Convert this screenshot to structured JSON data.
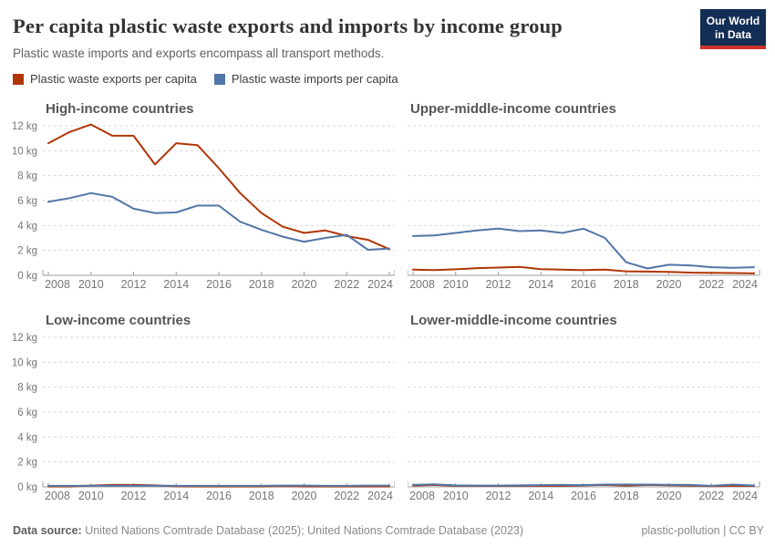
{
  "header": {
    "title": "Per capita plastic waste exports and imports by income group",
    "subtitle": "Plastic waste imports and exports encompass all transport methods.",
    "logo": [
      "Our World",
      "in Data"
    ]
  },
  "legend": [
    {
      "key": "exports",
      "label": "Plastic waste exports per capita",
      "color": "#B13507"
    },
    {
      "key": "imports",
      "label": "Plastic waste imports per capita",
      "color": "#5276A7"
    }
  ],
  "chart_data": {
    "type": "line",
    "years": [
      2008,
      2009,
      2010,
      2011,
      2012,
      2013,
      2014,
      2015,
      2016,
      2017,
      2018,
      2019,
      2020,
      2021,
      2022,
      2023,
      2024
    ],
    "x_tick_years": [
      2008,
      2010,
      2012,
      2014,
      2016,
      2018,
      2020,
      2022,
      2024
    ],
    "y_ticks": [
      0,
      2,
      4,
      6,
      8,
      10,
      12
    ],
    "y_unit": "kg",
    "ylim": [
      0,
      12
    ],
    "grid": "dashed-horizontal",
    "panels": [
      {
        "id": "high-income",
        "title": "High-income countries",
        "y_axis_labels": true,
        "series": [
          {
            "key": "exports",
            "name": "Plastic waste exports per capita",
            "values": [
              10.6,
              11.5,
              12.1,
              11.2,
              11.2,
              8.9,
              10.6,
              10.45,
              8.6,
              6.6,
              5.0,
              3.9,
              3.4,
              3.6,
              3.15,
              2.85,
              2.1
            ]
          },
          {
            "key": "imports",
            "name": "Plastic waste imports per capita",
            "values": [
              5.9,
              6.2,
              6.6,
              6.3,
              5.35,
              5.0,
              5.05,
              5.6,
              5.6,
              4.3,
              3.65,
              3.1,
              2.7,
              3.0,
              3.25,
              2.05,
              2.15
            ]
          }
        ]
      },
      {
        "id": "upper-middle-income",
        "title": "Upper-middle-income countries",
        "y_axis_labels": false,
        "series": [
          {
            "key": "exports",
            "name": "Plastic waste exports per capita",
            "values": [
              0.45,
              0.42,
              0.48,
              0.58,
              0.62,
              0.68,
              0.5,
              0.45,
              0.42,
              0.45,
              0.32,
              0.3,
              0.27,
              0.22,
              0.2,
              0.18,
              0.15
            ]
          },
          {
            "key": "imports",
            "name": "Plastic waste imports per capita",
            "values": [
              3.15,
              3.2,
              3.4,
              3.6,
              3.75,
              3.55,
              3.6,
              3.4,
              3.75,
              3.0,
              1.05,
              0.55,
              0.85,
              0.8,
              0.65,
              0.6,
              0.65
            ]
          }
        ]
      },
      {
        "id": "low-income",
        "title": "Low-income countries",
        "y_axis_labels": true,
        "series": [
          {
            "key": "exports",
            "name": "Plastic waste exports per capita",
            "values": [
              0.03,
              0.03,
              0.1,
              0.15,
              0.15,
              0.12,
              0.04,
              0.03,
              0.03,
              0.03,
              0.03,
              0.06,
              0.03,
              0.03,
              0.03,
              0.03,
              0.03
            ]
          },
          {
            "key": "imports",
            "name": "Plastic waste imports per capita",
            "values": [
              0.08,
              0.08,
              0.08,
              0.09,
              0.09,
              0.09,
              0.08,
              0.08,
              0.08,
              0.08,
              0.08,
              0.1,
              0.1,
              0.08,
              0.08,
              0.1,
              0.1
            ]
          }
        ]
      },
      {
        "id": "lower-middle-income",
        "title": "Lower-middle-income countries",
        "y_axis_labels": false,
        "series": [
          {
            "key": "exports",
            "name": "Plastic waste exports per capita",
            "values": [
              0.1,
              0.15,
              0.08,
              0.07,
              0.07,
              0.08,
              0.08,
              0.08,
              0.12,
              0.15,
              0.1,
              0.15,
              0.13,
              0.1,
              0.06,
              0.08,
              0.07
            ]
          },
          {
            "key": "imports",
            "name": "Plastic waste imports per capita",
            "values": [
              0.15,
              0.2,
              0.12,
              0.1,
              0.1,
              0.12,
              0.14,
              0.15,
              0.14,
              0.18,
              0.18,
              0.18,
              0.17,
              0.15,
              0.08,
              0.18,
              0.1
            ]
          }
        ]
      }
    ]
  },
  "footer": {
    "datasource_label": "Data source:",
    "datasource_text": " United Nations Comtrade Database (2025); United Nations Comtrade Database (2023)",
    "credit": "plastic-pollution | CC BY"
  },
  "colors": {
    "exports": "#B13507",
    "imports": "#5276A7",
    "gridline": "#d9d9d9",
    "axis": "#9e9e9e",
    "logo_bg": "#132E54",
    "logo_bar": "#CF322C"
  }
}
